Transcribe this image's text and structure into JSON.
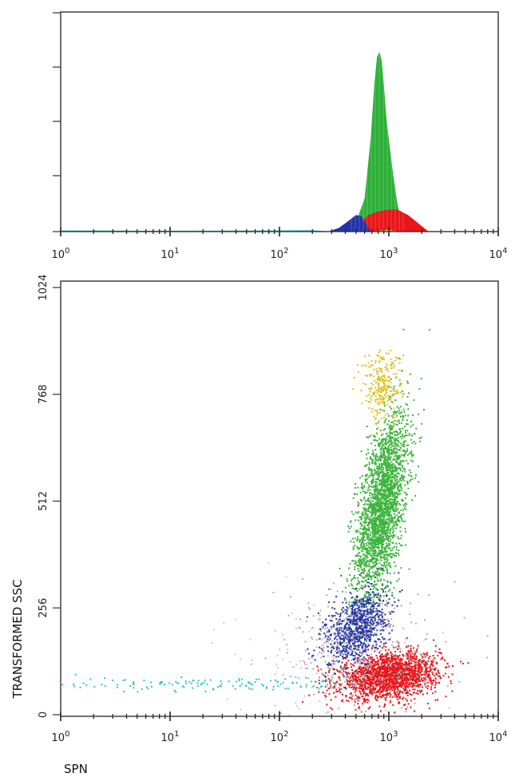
{
  "chart_data": [
    {
      "type": "area",
      "title": "",
      "x_scale": "log",
      "xlim": [
        1,
        10000
      ],
      "x_ticks": [
        {
          "value": 1,
          "base": "10",
          "exp": "0"
        },
        {
          "value": 10,
          "base": "10",
          "exp": "1"
        },
        {
          "value": 100,
          "base": "10",
          "exp": "2"
        },
        {
          "value": 1000,
          "base": "10",
          "exp": "3"
        },
        {
          "value": 10000,
          "base": "10",
          "exp": "4"
        }
      ],
      "xlabel": "",
      "ylabel": "",
      "series": [
        {
          "color": "#2fb03a",
          "x": [
            500,
            600,
            680,
            740,
            780,
            820,
            860,
            900,
            950,
            1000,
            1100,
            1200,
            1300,
            1450
          ],
          "y": [
            0.05,
            0.18,
            0.5,
            0.82,
            0.95,
            0.98,
            0.93,
            0.8,
            0.62,
            0.5,
            0.3,
            0.15,
            0.05,
            0
          ]
        },
        {
          "color": "#e8161b",
          "x": [
            480,
            560,
            650,
            800,
            1000,
            1200,
            1500,
            1900,
            2300
          ],
          "y": [
            0,
            0.05,
            0.09,
            0.11,
            0.12,
            0.12,
            0.09,
            0.04,
            0
          ]
        },
        {
          "color": "#2433a8",
          "x": [
            280,
            350,
            420,
            500,
            560,
            620,
            680
          ],
          "y": [
            0,
            0.02,
            0.055,
            0.09,
            0.085,
            0.04,
            0
          ]
        },
        {
          "color": "#e8c51a",
          "x": [
            650,
            800,
            950,
            1100,
            1250
          ],
          "y": [
            0,
            0.005,
            0.01,
            0.005,
            0
          ]
        },
        {
          "color": "#2ec4c6",
          "x": [
            1,
            2,
            5,
            20,
            80,
            200,
            300
          ],
          "y": [
            0.006,
            0.006,
            0.005,
            0.005,
            0.006,
            0.008,
            0
          ]
        }
      ]
    },
    {
      "type": "scatter",
      "title": "",
      "x_scale": "log",
      "xlim": [
        1,
        10000
      ],
      "ylim": [
        0,
        1024
      ],
      "x_ticks": [
        {
          "value": 1,
          "base": "10",
          "exp": "0"
        },
        {
          "value": 10,
          "base": "10",
          "exp": "1"
        },
        {
          "value": 100,
          "base": "10",
          "exp": "2"
        },
        {
          "value": 1000,
          "base": "10",
          "exp": "3"
        },
        {
          "value": 10000,
          "base": "10",
          "exp": "4"
        }
      ],
      "y_ticks": [
        "0",
        "256",
        "512",
        "768",
        "1024"
      ],
      "xlabel": "SPN",
      "ylabel": "TRANSFORMED SSC",
      "populations": [
        {
          "color": "#3cb43c",
          "center": [
            850,
            500
          ],
          "spread_log_x": 0.12,
          "spread_y": 95,
          "tilt": 180,
          "count": 2600
        },
        {
          "color": "#e8161b",
          "center": [
            1000,
            95
          ],
          "spread_log_x": 0.22,
          "spread_y": 26,
          "tilt": 20,
          "count": 2000
        },
        {
          "color": "#2a35a8",
          "center": [
            500,
            210
          ],
          "spread_log_x": 0.14,
          "spread_y": 42,
          "tilt": 60,
          "count": 900
        },
        {
          "color": "#e0c020",
          "center": [
            850,
            790
          ],
          "spread_log_x": 0.09,
          "spread_y": 42,
          "tilt": 0,
          "count": 260
        },
        {
          "color": "#2ec4c6",
          "center": [
            20,
            75
          ],
          "spread_log_x": 0.8,
          "spread_y": 9,
          "tilt": 0,
          "count": 150
        },
        {
          "color": "#b0b0b0",
          "center": [
            600,
            150
          ],
          "spread_log_x": 0.35,
          "spread_y": 80,
          "tilt": 0,
          "count": 350
        },
        {
          "color": "#f2b8cc",
          "center": [
            300,
            130
          ],
          "spread_log_x": 0.5,
          "spread_y": 70,
          "tilt": 0,
          "count": 120
        }
      ]
    }
  ]
}
